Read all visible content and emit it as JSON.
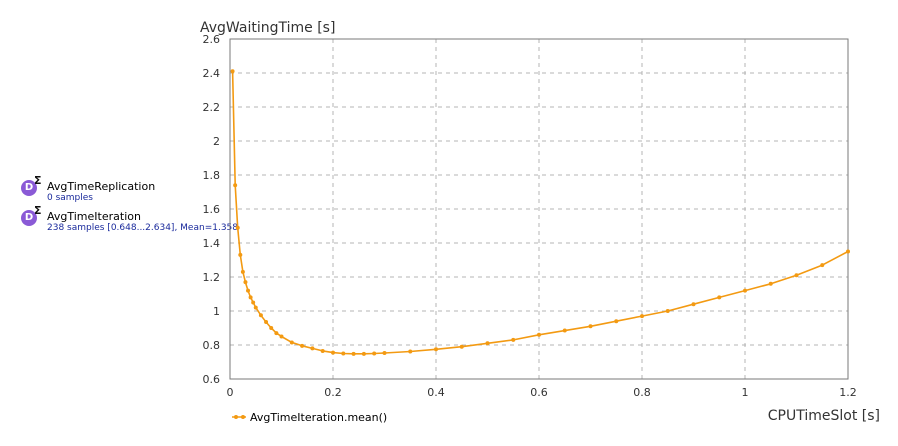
{
  "datasets": [
    {
      "icon": "dataset-icon",
      "icon_letter": "D",
      "sigma": "Σ",
      "name": "AvgTimeReplication",
      "info": "0 samples"
    },
    {
      "icon": "dataset-icon",
      "icon_letter": "D",
      "sigma": "Σ",
      "name": "AvgTimeIteration",
      "info": "238 samples [0.648...2.634], Mean=1.358"
    }
  ],
  "colors": {
    "series": "#f39a12",
    "grid": "#b4b4b4"
  },
  "chart_data": {
    "type": "line",
    "title": "",
    "xlabel": "CPUTimeSlot [s]",
    "ylabel": "AvgWaitingTime [s]",
    "xlim": [
      0,
      1.2
    ],
    "ylim": [
      0.6,
      2.6
    ],
    "x_ticks": [
      "0",
      "0.2",
      "0.4",
      "0.6",
      "0.8",
      "1",
      "1.2"
    ],
    "y_ticks": [
      "0.6",
      "0.8",
      "1",
      "1.2",
      "1.4",
      "1.6",
      "1.8",
      "2",
      "2.2",
      "2.4",
      "2.6"
    ],
    "grid": true,
    "legend": "bottom-left",
    "series": [
      {
        "name": "AvgTimeIteration.mean()",
        "x": [
          0.005,
          0.01,
          0.015,
          0.02,
          0.025,
          0.03,
          0.035,
          0.04,
          0.045,
          0.05,
          0.06,
          0.07,
          0.08,
          0.09,
          0.1,
          0.12,
          0.14,
          0.16,
          0.18,
          0.2,
          0.22,
          0.24,
          0.26,
          0.28,
          0.3,
          0.35,
          0.4,
          0.45,
          0.5,
          0.55,
          0.6,
          0.65,
          0.7,
          0.75,
          0.8,
          0.85,
          0.9,
          0.95,
          1.0,
          1.05,
          1.1,
          1.15,
          1.2
        ],
        "y": [
          2.41,
          1.74,
          1.49,
          1.33,
          1.23,
          1.17,
          1.12,
          1.08,
          1.05,
          1.02,
          0.975,
          0.935,
          0.9,
          0.87,
          0.85,
          0.815,
          0.795,
          0.78,
          0.765,
          0.755,
          0.75,
          0.748,
          0.748,
          0.75,
          0.753,
          0.762,
          0.775,
          0.79,
          0.81,
          0.83,
          0.86,
          0.885,
          0.91,
          0.94,
          0.97,
          1.0,
          1.04,
          1.08,
          1.12,
          1.16,
          1.21,
          1.27,
          1.35
        ]
      }
    ]
  }
}
